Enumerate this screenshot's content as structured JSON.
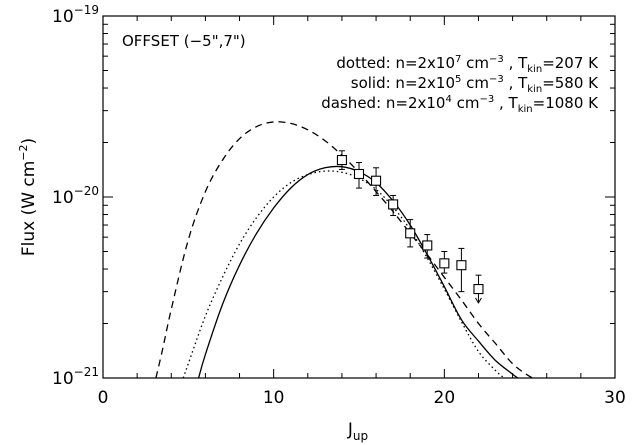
{
  "chart_data": {
    "type": "scatter",
    "xlabel": "J",
    "xlabel_sub": "up",
    "ylabel": "Flux (W cm",
    "ylabel_sup": "−2",
    "ylabel_close": ")",
    "xlim": [
      0,
      30
    ],
    "ylim": [
      1e-21,
      1e-19
    ],
    "yscale": "log",
    "x_ticks": [
      0,
      10,
      20,
      30
    ],
    "x_tick_labels": [
      "0",
      "10",
      "20",
      "30"
    ],
    "y_ticks": [
      {
        "value": 1e-21,
        "base": "10",
        "exp": "−21"
      },
      {
        "value": 1e-20,
        "base": "10",
        "exp": "−20"
      },
      {
        "value": 1e-19,
        "base": "10",
        "exp": "−19"
      }
    ],
    "annotation": "OFFSET (−5\",7\")",
    "legend": [
      {
        "style": "dotted",
        "prefix": "dotted: n=2x10",
        "n_exp": "7",
        "unit": " cm",
        "unit_exp": "−3",
        "tsep": " , T",
        "tsub": "kin",
        "tval": "=207 K"
      },
      {
        "style": "solid",
        "prefix": "solid: n=2x10",
        "n_exp": "5",
        "unit": " cm",
        "unit_exp": "−3",
        "tsep": " , T",
        "tsub": "kin",
        "tval": "=580 K"
      },
      {
        "style": "dashed",
        "prefix": "dashed: n=2x10",
        "n_exp": "4",
        "unit": " cm",
        "unit_exp": "−3",
        "tsep": " , T",
        "tsub": "kin",
        "tval": "=1080 K"
      }
    ],
    "observations": [
      {
        "x": 14,
        "y": 1.6e-20,
        "err_lo": 1.42e-20,
        "err_hi": 1.8e-20,
        "upper_limit": false
      },
      {
        "x": 15,
        "y": 1.34e-20,
        "err_lo": 1.12e-20,
        "err_hi": 1.55e-20,
        "upper_limit": false
      },
      {
        "x": 16,
        "y": 1.23e-20,
        "err_lo": 1.02e-20,
        "err_hi": 1.45e-20,
        "upper_limit": false
      },
      {
        "x": 17,
        "y": 9.1e-21,
        "err_lo": 7.9e-21,
        "err_hi": 1.02e-20,
        "upper_limit": false
      },
      {
        "x": 18,
        "y": 6.3e-21,
        "err_lo": 5.3e-21,
        "err_hi": 7.5e-21,
        "upper_limit": false
      },
      {
        "x": 19,
        "y": 5.4e-21,
        "err_lo": 4.6e-21,
        "err_hi": 6.2e-21,
        "upper_limit": false
      },
      {
        "x": 20,
        "y": 4.3e-21,
        "err_lo": 3.8e-21,
        "err_hi": 5e-21,
        "upper_limit": false
      },
      {
        "x": 21,
        "y": 4.2e-21,
        "err_lo": 3e-21,
        "err_hi": 5.2e-21,
        "upper_limit": false
      },
      {
        "x": 22,
        "y": 3.1e-21,
        "err_lo": 2.6e-21,
        "err_hi": 3.7e-21,
        "upper_limit": true
      }
    ],
    "series": [
      {
        "style": "dashed",
        "x": [
          3.1,
          3.5,
          4,
          5,
          6,
          7,
          8,
          9,
          10,
          11,
          12,
          13,
          14,
          15,
          16,
          17,
          18,
          19,
          20,
          21,
          22,
          23,
          24,
          25,
          25.4
        ],
        "y": [
          1e-21,
          1.45e-21,
          2.4e-21,
          5.8e-21,
          1.07e-20,
          1.6e-20,
          2.1e-20,
          2.45e-20,
          2.6e-20,
          2.55e-20,
          2.35e-20,
          2.05e-20,
          1.7e-20,
          1.37e-20,
          1.07e-20,
          8.3e-21,
          6.3e-21,
          4.8e-21,
          3.6e-21,
          2.7e-21,
          2e-21,
          1.55e-21,
          1.2e-21,
          1.02e-21,
          1e-21
        ]
      },
      {
        "style": "solid",
        "x": [
          5.6,
          6,
          7,
          8,
          9,
          10,
          11,
          12,
          13,
          14,
          15,
          16,
          17,
          18,
          19,
          20,
          21,
          22,
          23,
          24,
          24.3
        ],
        "y": [
          1e-21,
          1.35e-21,
          2.55e-21,
          4.2e-21,
          6.3e-21,
          8.7e-21,
          1.12e-20,
          1.33e-20,
          1.45e-20,
          1.47e-20,
          1.38e-20,
          1.2e-20,
          9.5e-21,
          7e-21,
          4.8e-21,
          3.2e-21,
          2.1e-21,
          1.6e-21,
          1.25e-21,
          1.05e-21,
          1e-21
        ]
      },
      {
        "style": "dotted",
        "x": [
          4.7,
          5,
          6,
          7,
          8,
          9,
          10,
          11,
          12,
          13,
          14,
          15,
          16,
          17,
          18,
          19,
          20,
          21,
          22,
          23,
          23.5
        ],
        "y": [
          1e-21,
          1.2e-21,
          2.2e-21,
          3.6e-21,
          5.5e-21,
          7.7e-21,
          1e-20,
          1.2e-20,
          1.33e-20,
          1.39e-20,
          1.37e-20,
          1.27e-20,
          1.1e-20,
          8.8e-21,
          6.6e-21,
          4.6e-21,
          3.1e-21,
          2.05e-21,
          1.4e-21,
          1.1e-21,
          1e-21
        ]
      }
    ]
  }
}
